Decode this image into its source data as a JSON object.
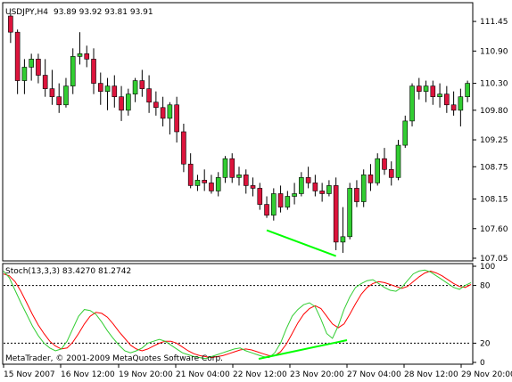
{
  "header": {
    "symbol": "USDJPY,H4",
    "ohlc": "93.89 93.92 93.81 93.91"
  },
  "indicator": {
    "label": "Stoch(13,3,3) 83.4270 81.2742",
    "copyright": "MetaTrader, © 2001-2009 MetaQuotes Software Corp.",
    "levels": [
      20,
      80
    ],
    "ticks": [
      "100",
      "80",
      "20",
      "0"
    ],
    "k_color": "#32CD32",
    "d_color": "#FF0000"
  },
  "colors": {
    "bull": "#32CD32",
    "bear": "#DC143C",
    "divergence": "#00FF00",
    "grid": "#000000"
  },
  "chart_data": [
    {
      "type": "candlestick",
      "title": "USDJPY,H4",
      "ylim": [
        107.05,
        111.65
      ],
      "y_ticks": [
        "111.45",
        "110.90",
        "110.30",
        "109.80",
        "109.25",
        "108.75",
        "108.15",
        "107.60",
        "107.05"
      ],
      "x_ticks": [
        "15 Nov 2007",
        "16 Nov 12:00",
        "19 Nov 20:00",
        "21 Nov 04:00",
        "22 Nov 12:00",
        "23 Nov 20:00",
        "27 Nov 04:00",
        "28 Nov 12:00",
        "29 Nov 20:00"
      ],
      "candles": [
        [
          111.55,
          111.6,
          111.05,
          111.25
        ],
        [
          111.25,
          111.3,
          110.1,
          110.35
        ],
        [
          110.35,
          110.75,
          110.1,
          110.6
        ],
        [
          110.6,
          110.85,
          110.35,
          110.75
        ],
        [
          110.75,
          110.85,
          110.3,
          110.45
        ],
        [
          110.45,
          110.75,
          110.05,
          110.2
        ],
        [
          110.2,
          110.55,
          109.9,
          110.05
        ],
        [
          110.05,
          110.3,
          109.75,
          109.9
        ],
        [
          109.9,
          110.4,
          109.85,
          110.25
        ],
        [
          110.25,
          110.95,
          110.1,
          110.8
        ],
        [
          110.8,
          111.25,
          110.65,
          110.85
        ],
        [
          110.85,
          111.0,
          110.6,
          110.75
        ],
        [
          110.75,
          110.95,
          110.1,
          110.3
        ],
        [
          110.3,
          110.5,
          109.9,
          110.15
        ],
        [
          110.15,
          110.4,
          109.8,
          110.25
        ],
        [
          110.25,
          110.45,
          109.85,
          110.05
        ],
        [
          110.05,
          110.25,
          109.6,
          109.8
        ],
        [
          109.8,
          110.2,
          109.7,
          110.1
        ],
        [
          110.1,
          110.4,
          109.95,
          110.35
        ],
        [
          110.35,
          110.55,
          110.05,
          110.2
        ],
        [
          110.2,
          110.45,
          109.75,
          109.95
        ],
        [
          109.95,
          110.15,
          109.7,
          109.85
        ],
        [
          109.85,
          110.05,
          109.5,
          109.65
        ],
        [
          109.65,
          109.95,
          109.35,
          109.9
        ],
        [
          109.9,
          110.05,
          109.2,
          109.4
        ],
        [
          109.4,
          109.55,
          108.65,
          108.8
        ],
        [
          108.8,
          109.0,
          108.35,
          108.4
        ],
        [
          108.4,
          108.6,
          108.3,
          108.5
        ],
        [
          108.5,
          108.7,
          108.3,
          108.45
        ],
        [
          108.45,
          108.6,
          108.25,
          108.3
        ],
        [
          108.3,
          108.65,
          108.2,
          108.55
        ],
        [
          108.55,
          108.95,
          108.45,
          108.9
        ],
        [
          108.9,
          109.0,
          108.45,
          108.55
        ],
        [
          108.55,
          108.75,
          108.4,
          108.6
        ],
        [
          108.6,
          108.7,
          108.25,
          108.4
        ],
        [
          108.4,
          108.55,
          108.2,
          108.35
        ],
        [
          108.35,
          108.45,
          107.95,
          108.05
        ],
        [
          108.05,
          108.2,
          107.8,
          107.85
        ],
        [
          107.85,
          108.35,
          107.75,
          108.25
        ],
        [
          108.25,
          108.4,
          107.9,
          108.0
        ],
        [
          108.0,
          108.3,
          107.95,
          108.2
        ],
        [
          108.2,
          108.45,
          108.05,
          108.25
        ],
        [
          108.25,
          108.65,
          108.2,
          108.55
        ],
        [
          108.55,
          108.75,
          108.35,
          108.45
        ],
        [
          108.45,
          108.6,
          108.2,
          108.3
        ],
        [
          108.3,
          108.45,
          108.1,
          108.25
        ],
        [
          108.25,
          108.5,
          108.2,
          108.4
        ],
        [
          108.4,
          108.55,
          107.2,
          107.35
        ],
        [
          107.35,
          108.0,
          107.15,
          107.45
        ],
        [
          107.45,
          108.45,
          107.4,
          108.35
        ],
        [
          108.35,
          108.5,
          108.0,
          108.1
        ],
        [
          108.1,
          108.7,
          108.0,
          108.6
        ],
        [
          108.6,
          108.8,
          108.3,
          108.45
        ],
        [
          108.45,
          109.0,
          108.4,
          108.9
        ],
        [
          108.9,
          109.1,
          108.6,
          108.7
        ],
        [
          108.7,
          108.85,
          108.4,
          108.55
        ],
        [
          108.55,
          109.25,
          108.5,
          109.15
        ],
        [
          109.15,
          109.7,
          109.1,
          109.6
        ],
        [
          109.6,
          110.3,
          109.5,
          110.25
        ],
        [
          110.25,
          110.4,
          110.0,
          110.15
        ],
        [
          110.15,
          110.35,
          109.95,
          110.25
        ],
        [
          110.25,
          110.35,
          109.9,
          110.05
        ],
        [
          110.05,
          110.3,
          109.85,
          110.1
        ],
        [
          110.1,
          110.25,
          109.75,
          109.9
        ],
        [
          109.9,
          110.15,
          109.7,
          109.8
        ],
        [
          109.8,
          110.2,
          109.5,
          110.05
        ],
        [
          110.05,
          110.35,
          109.95,
          110.3
        ]
      ],
      "divergence_line": [
        [
          37,
          107.57
        ],
        [
          47,
          107.09
        ]
      ]
    },
    {
      "type": "line",
      "title": "Stoch(13,3,3)",
      "ylim": [
        0,
        100
      ],
      "series": [
        {
          "name": "",
          "color": "#32CD32",
          "values": [
            95,
            88,
            75,
            62,
            50,
            38,
            28,
            20,
            15,
            12,
            14,
            22,
            35,
            48,
            55,
            54,
            50,
            42,
            33,
            25,
            18,
            12,
            10,
            12,
            15,
            20,
            22,
            24,
            22,
            18,
            14,
            10,
            8,
            6,
            5,
            4,
            6,
            8,
            10,
            12,
            14,
            15,
            12,
            10,
            8,
            6,
            5,
            10,
            20,
            35,
            48,
            55,
            60,
            62,
            58,
            45,
            30,
            25,
            38,
            55,
            68,
            78,
            82,
            85,
            86,
            82,
            78,
            75,
            74,
            78,
            85,
            92,
            95,
            96,
            94,
            90,
            86,
            82,
            78,
            76,
            80,
            83
          ]
        },
        {
          "name": "",
          "color": "#FF0000",
          "values": [
            92,
            90,
            84,
            74,
            62,
            50,
            39,
            30,
            22,
            17,
            14,
            15,
            21,
            30,
            40,
            48,
            52,
            51,
            47,
            40,
            32,
            25,
            18,
            14,
            12,
            14,
            17,
            20,
            22,
            22,
            20,
            16,
            12,
            9,
            7,
            6,
            5,
            6,
            7,
            9,
            11,
            13,
            14,
            13,
            11,
            9,
            7,
            7,
            11,
            19,
            30,
            41,
            50,
            56,
            59,
            56,
            48,
            40,
            36,
            40,
            50,
            61,
            71,
            78,
            82,
            84,
            83,
            81,
            79,
            77,
            79,
            84,
            89,
            93,
            95,
            93,
            90,
            86,
            82,
            79,
            78,
            81
          ]
        }
      ],
      "divergence_line": [
        [
          290,
          403
        ],
        [
          389,
          382
        ]
      ]
    }
  ]
}
